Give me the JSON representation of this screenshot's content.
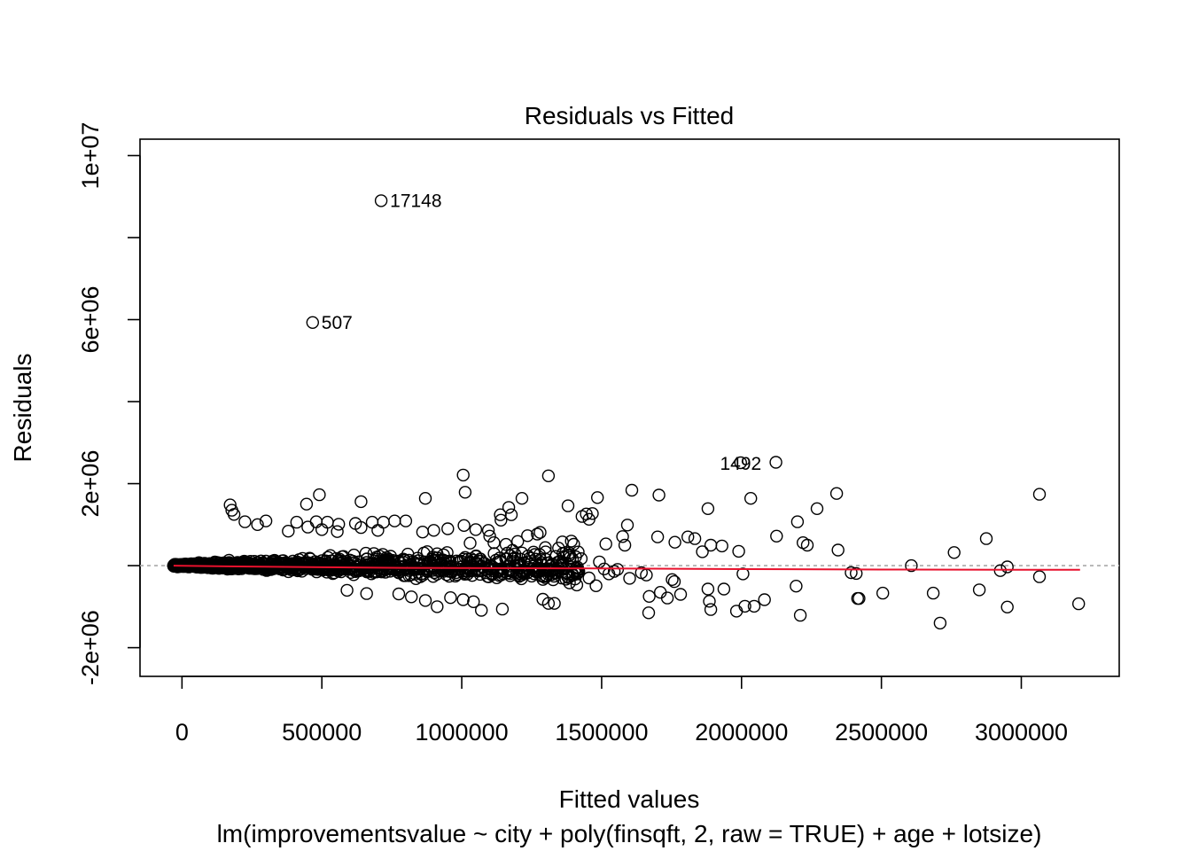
{
  "chart_data": {
    "type": "scatter",
    "title": "Residuals vs Fitted",
    "xlabel": "Fitted values",
    "ylabel": "Residuals",
    "subtitle": "lm(improvementsvalue ~ city + poly(finsqft, 2, raw = TRUE) + age + lotsize)",
    "xlim": [
      -150000,
      3350000
    ],
    "ylim": [
      -2700000,
      10400000
    ],
    "x_ticks": [
      {
        "value": 0,
        "label": "0"
      },
      {
        "value": 500000,
        "label": "500000"
      },
      {
        "value": 1000000,
        "label": "1000000"
      },
      {
        "value": 1500000,
        "label": "1500000"
      },
      {
        "value": 2000000,
        "label": "2000000"
      },
      {
        "value": 2500000,
        "label": "2500000"
      },
      {
        "value": 3000000,
        "label": "3000000"
      }
    ],
    "y_ticks": [
      {
        "value": -2000000,
        "label": "-2e+06"
      },
      {
        "value": 0,
        "label": ""
      },
      {
        "value": 2000000,
        "label": "2e+06"
      },
      {
        "value": 4000000,
        "label": ""
      },
      {
        "value": 6000000,
        "label": "6e+06"
      },
      {
        "value": 8000000,
        "label": ""
      },
      {
        "value": 10000000,
        "label": "1e+07"
      }
    ],
    "reference_line": {
      "y": 0,
      "style": "dotted",
      "color": "#aaaaaa"
    },
    "smooth_line": {
      "color": "#e8112d",
      "x": [
        -30000,
        200000,
        500000,
        800000,
        1100000,
        1500000,
        2000000,
        2500000,
        3000000,
        3210000
      ],
      "y": [
        0,
        -20000,
        -40000,
        -55000,
        -60000,
        -70000,
        -85000,
        -95000,
        -100000,
        -100000
      ]
    },
    "labeled_points": [
      {
        "x": 712000,
        "y": 8900000,
        "label": "17148"
      },
      {
        "x": 467000,
        "y": 5930000,
        "label": "507"
      },
      {
        "x": 1997000,
        "y": 2510000,
        "label": "1492"
      }
    ],
    "points": [
      [
        2123000,
        2520000
      ],
      [
        1005000,
        2210000
      ],
      [
        1310000,
        2190000
      ],
      [
        1608000,
        1840000
      ],
      [
        1705000,
        1720000
      ],
      [
        3065000,
        1740000
      ],
      [
        2340000,
        1760000
      ],
      [
        2033000,
        1640000
      ],
      [
        870000,
        1640000
      ],
      [
        1012000,
        1790000
      ],
      [
        1485000,
        1660000
      ],
      [
        1215000,
        1640000
      ],
      [
        491000,
        1730000
      ],
      [
        445000,
        1500000
      ],
      [
        640000,
        1560000
      ],
      [
        1380000,
        1460000
      ],
      [
        1168000,
        1420000
      ],
      [
        1880000,
        1390000
      ],
      [
        2270000,
        1390000
      ],
      [
        2200000,
        1070000
      ],
      [
        2125000,
        720000
      ],
      [
        2875000,
        660000
      ],
      [
        1700000,
        700000
      ],
      [
        1808000,
        700000
      ],
      [
        1762000,
        570000
      ],
      [
        1890000,
        500000
      ],
      [
        1930000,
        480000
      ],
      [
        1860000,
        340000
      ],
      [
        1990000,
        350000
      ],
      [
        2345000,
        380000
      ],
      [
        2220000,
        560000
      ],
      [
        2235000,
        500000
      ],
      [
        2760000,
        320000
      ],
      [
        2607000,
        0
      ],
      [
        2950000,
        -30000
      ],
      [
        2925000,
        -120000
      ],
      [
        3065000,
        -270000
      ],
      [
        3205000,
        -930000
      ],
      [
        2950000,
        -1010000
      ],
      [
        2710000,
        -1400000
      ],
      [
        2850000,
        -590000
      ],
      [
        2685000,
        -670000
      ],
      [
        2505000,
        -670000
      ],
      [
        2415000,
        -800000
      ],
      [
        2420000,
        -800000
      ],
      [
        2410000,
        -190000
      ],
      [
        2195000,
        -500000
      ],
      [
        2210000,
        -1210000
      ],
      [
        2082000,
        -830000
      ],
      [
        2045000,
        -990000
      ],
      [
        2012000,
        -990000
      ],
      [
        1982000,
        -1110000
      ],
      [
        2005000,
        -200000
      ],
      [
        1937000,
        -570000
      ],
      [
        1880000,
        -570000
      ],
      [
        1890000,
        -1070000
      ],
      [
        1885000,
        -870000
      ],
      [
        1760000,
        -390000
      ],
      [
        1752000,
        -340000
      ],
      [
        1710000,
        -650000
      ],
      [
        1670000,
        -750000
      ],
      [
        1660000,
        -230000
      ],
      [
        1642000,
        -170000
      ],
      [
        1668000,
        -1150000
      ],
      [
        1735000,
        -790000
      ],
      [
        1600000,
        -310000
      ],
      [
        1545000,
        -140000
      ],
      [
        1480000,
        -490000
      ],
      [
        1385000,
        -420000
      ],
      [
        1331000,
        -920000
      ],
      [
        1310000,
        -920000
      ],
      [
        1290000,
        -820000
      ],
      [
        1145000,
        -1060000
      ],
      [
        1070000,
        -1090000
      ],
      [
        1042000,
        -880000
      ],
      [
        1005000,
        -830000
      ],
      [
        960000,
        -780000
      ],
      [
        912000,
        -1000000
      ],
      [
        870000,
        -850000
      ],
      [
        820000,
        -760000
      ],
      [
        775000,
        -690000
      ],
      [
        660000,
        -680000
      ],
      [
        590000,
        -600000
      ],
      [
        1430000,
        1200000
      ],
      [
        1455000,
        1130000
      ],
      [
        1467000,
        1270000
      ],
      [
        1445000,
        1260000
      ],
      [
        1138000,
        1240000
      ],
      [
        1140000,
        1110000
      ],
      [
        1270000,
        770000
      ],
      [
        1280000,
        810000
      ],
      [
        1235000,
        730000
      ],
      [
        1177000,
        1240000
      ],
      [
        1095000,
        860000
      ],
      [
        1008000,
        980000
      ],
      [
        1050000,
        880000
      ],
      [
        1100000,
        720000
      ],
      [
        950000,
        900000
      ],
      [
        900000,
        860000
      ],
      [
        1360000,
        580000
      ],
      [
        1400000,
        520000
      ],
      [
        1515000,
        530000
      ],
      [
        1575000,
        710000
      ],
      [
        1592000,
        990000
      ],
      [
        1583000,
        500000
      ],
      [
        2392000,
        -170000
      ],
      [
        1782000,
        -700000
      ],
      [
        1833000,
        660000
      ],
      [
        1557000,
        -90000
      ],
      [
        1509000,
        -80000
      ],
      [
        1455000,
        -300000
      ],
      [
        1492000,
        90000
      ],
      [
        1526000,
        -200000
      ],
      [
        1427000,
        170000
      ],
      [
        1383000,
        240000
      ],
      [
        800000,
        1090000
      ],
      [
        760000,
        1090000
      ],
      [
        720000,
        1060000
      ],
      [
        680000,
        1060000
      ],
      [
        620000,
        1030000
      ],
      [
        560000,
        1010000
      ],
      [
        520000,
        1060000
      ],
      [
        480000,
        1070000
      ],
      [
        410000,
        1060000
      ],
      [
        300000,
        1090000
      ],
      [
        270000,
        1000000
      ],
      [
        225000,
        1070000
      ],
      [
        178000,
        1350000
      ],
      [
        172000,
        1480000
      ],
      [
        186000,
        1250000
      ],
      [
        380000,
        840000
      ],
      [
        450000,
        940000
      ],
      [
        500000,
        880000
      ],
      [
        555000,
        830000
      ],
      [
        640000,
        930000
      ],
      [
        700000,
        860000
      ],
      [
        860000,
        820000
      ],
      [
        1030000,
        550000
      ],
      [
        1115000,
        560000
      ],
      [
        1200000,
        590000
      ]
    ],
    "cluster_seed": 17
  }
}
